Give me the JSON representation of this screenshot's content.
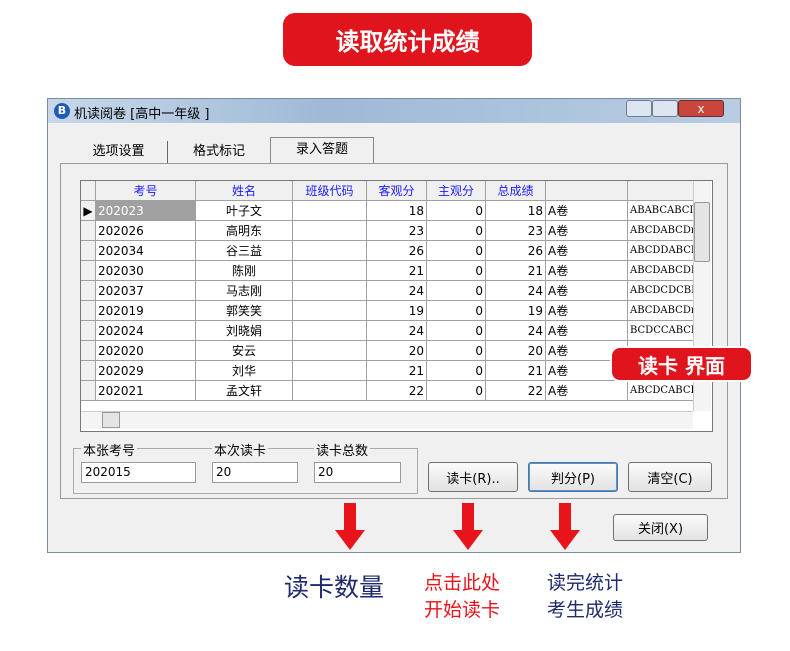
{
  "header": {
    "title": "读取统计成绩"
  },
  "window": {
    "title": "机读阅卷 [高中一年级    ]",
    "tabs": [
      "选项设置",
      "格式标记",
      "录入答题"
    ],
    "table": {
      "headers": [
        "考号",
        "姓名",
        "班级代码",
        "客观分",
        "主观分",
        "总成绩"
      ],
      "rows": [
        {
          "id": "202023",
          "name": "叶子文",
          "objective": 18,
          "subjective": 0,
          "total": 18,
          "paper": "A卷",
          "answers": "ABABCABCI"
        },
        {
          "id": "202026",
          "name": "高明东",
          "objective": 23,
          "subjective": 0,
          "total": 23,
          "paper": "A卷",
          "answers": "ABCDABCDı"
        },
        {
          "id": "202034",
          "name": "谷三益",
          "objective": 26,
          "subjective": 0,
          "total": 26,
          "paper": "A卷",
          "answers": "ABCDDABCI"
        },
        {
          "id": "202030",
          "name": "陈刚",
          "objective": 21,
          "subjective": 0,
          "total": 21,
          "paper": "A卷",
          "answers": "ABCDABCDI"
        },
        {
          "id": "202037",
          "name": "马志刚",
          "objective": 24,
          "subjective": 0,
          "total": 24,
          "paper": "A卷",
          "answers": "ABCDCDCBI"
        },
        {
          "id": "202019",
          "name": "郭笑笑",
          "objective": 19,
          "subjective": 0,
          "total": 19,
          "paper": "A卷",
          "answers": "ABCDABCDı"
        },
        {
          "id": "202024",
          "name": "刘晓娟",
          "objective": 24,
          "subjective": 0,
          "total": 24,
          "paper": "A卷",
          "answers": "BCDCCABCI"
        },
        {
          "id": "202020",
          "name": "安云",
          "objective": 20,
          "subjective": 0,
          "total": 20,
          "paper": "A卷"
        },
        {
          "id": "202029",
          "name": "刘华",
          "objective": 21,
          "subjective": 0,
          "total": 21,
          "paper": "A卷"
        },
        {
          "id": "202021",
          "name": "孟文轩",
          "objective": 22,
          "subjective": 0,
          "total": 22,
          "paper": "A卷",
          "answers": "ABCDCABCI"
        }
      ]
    },
    "fields": [
      {
        "label": "本张考号",
        "value": "202015"
      },
      {
        "label": "本次读卡",
        "value": "20"
      },
      {
        "label": "读卡总数",
        "value": "20"
      }
    ],
    "buttons": [
      "读卡(R)..",
      "判分(P)",
      "清空(C)",
      "关闭(X)"
    ]
  },
  "annotations": {
    "interface": "读卡 界面",
    "count": "读卡数量",
    "start": [
      "点击此处",
      "开始读卡"
    ],
    "stats": [
      "读完统计",
      "考生成绩"
    ]
  }
}
